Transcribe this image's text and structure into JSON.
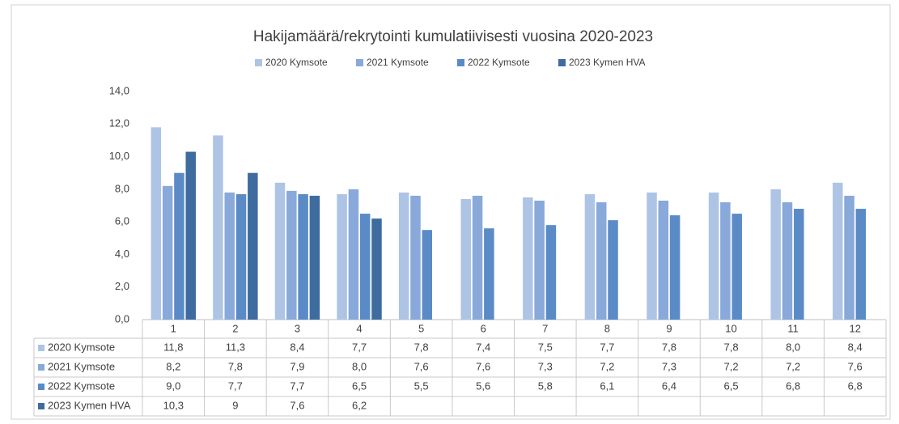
{
  "chart_data": {
    "type": "bar",
    "title": "Hakijamäärä/rekrytointi kumulatiivisesti vuosina 2020-2023",
    "categories": [
      "1",
      "2",
      "3",
      "4",
      "5",
      "6",
      "7",
      "8",
      "9",
      "10",
      "11",
      "12"
    ],
    "series": [
      {
        "name": "2020 Kymsote",
        "color": "#aec4e5",
        "values": [
          11.8,
          11.3,
          8.4,
          7.7,
          7.8,
          7.4,
          7.5,
          7.7,
          7.8,
          7.8,
          8.0,
          8.4
        ],
        "value_labels": [
          "11,8",
          "11,3",
          "8,4",
          "7,7",
          "7,8",
          "7,4",
          "7,5",
          "7,7",
          "7,8",
          "7,8",
          "8,0",
          "8,4"
        ]
      },
      {
        "name": "2021 Kymsote",
        "color": "#88a9d9",
        "values": [
          8.2,
          7.8,
          7.9,
          8.0,
          7.6,
          7.6,
          7.3,
          7.2,
          7.3,
          7.2,
          7.2,
          7.6
        ],
        "value_labels": [
          "8,2",
          "7,8",
          "7,9",
          "8,0",
          "7,6",
          "7,6",
          "7,3",
          "7,2",
          "7,3",
          "7,2",
          "7,2",
          "7,6"
        ]
      },
      {
        "name": "2022 Kymsote",
        "color": "#5a8bc7",
        "values": [
          9.0,
          7.7,
          7.7,
          6.5,
          5.5,
          5.6,
          5.8,
          6.1,
          6.4,
          6.5,
          6.8,
          6.8
        ],
        "value_labels": [
          "9,0",
          "7,7",
          "7,7",
          "6,5",
          "5,5",
          "5,6",
          "5,8",
          "6,1",
          "6,4",
          "6,5",
          "6,8",
          "6,8"
        ]
      },
      {
        "name": "2023 Kymen HVA",
        "color": "#3e6c9f",
        "values": [
          10.3,
          9,
          7.6,
          6.2,
          null,
          null,
          null,
          null,
          null,
          null,
          null,
          null
        ],
        "value_labels": [
          "10,3",
          "9",
          "7,6",
          "6,2",
          null,
          null,
          null,
          null,
          null,
          null,
          null,
          null
        ]
      }
    ],
    "ylim": [
      0,
      14
    ],
    "yticks": [
      {
        "value": 0,
        "label": "0,0"
      },
      {
        "value": 2,
        "label": "2,0"
      },
      {
        "value": 4,
        "label": "4,0"
      },
      {
        "value": 6,
        "label": "6,0"
      },
      {
        "value": 8,
        "label": "8,0"
      },
      {
        "value": 10,
        "label": "10,0"
      },
      {
        "value": 12,
        "label": "12,0"
      },
      {
        "value": 14,
        "label": "14,0"
      }
    ],
    "grid": false
  }
}
